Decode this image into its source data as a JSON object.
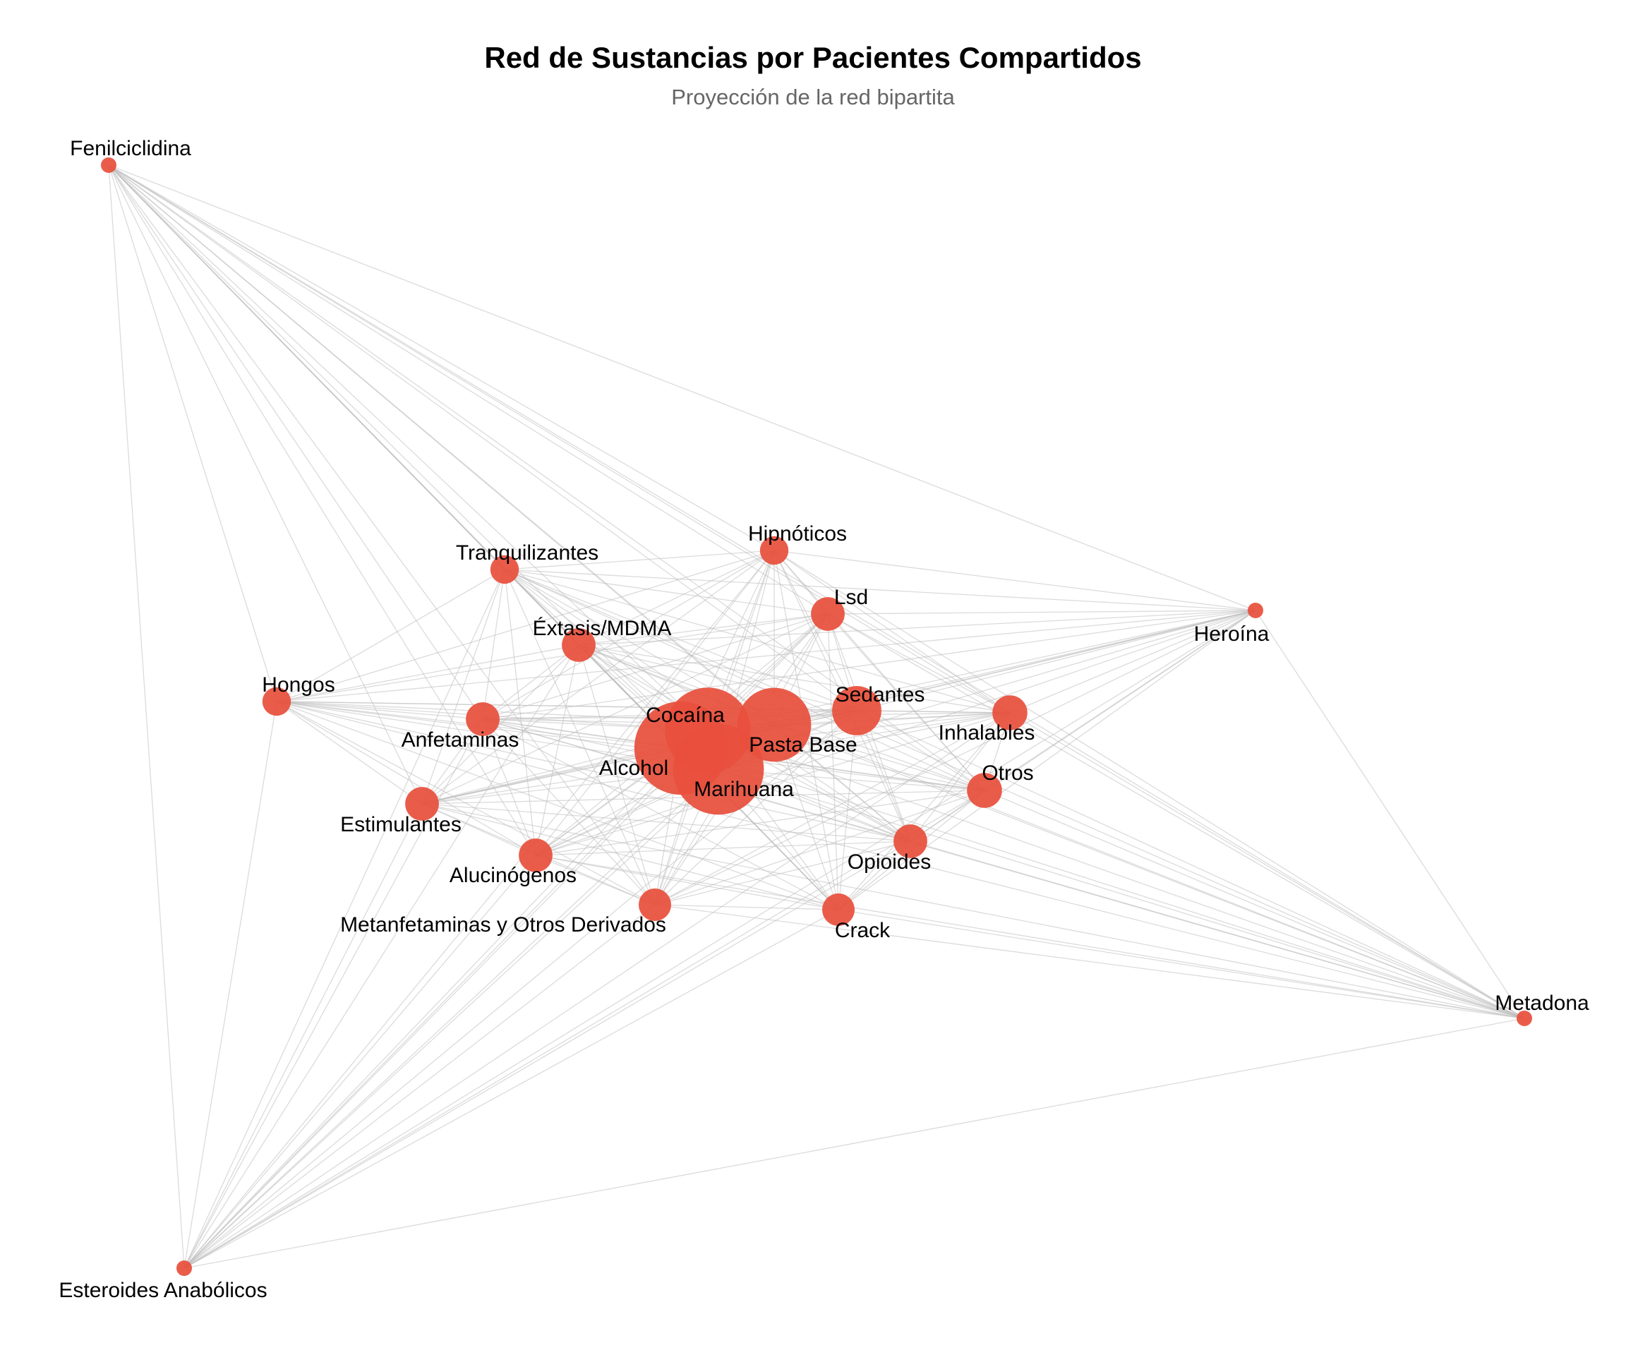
{
  "title": "Red de Sustancias por Pacientes Compartidos",
  "subtitle": "Proyección de la red bipartita",
  "colors": {
    "node": "#e8503c",
    "edge": "#bdbdbd",
    "text": "#000000",
    "subtitle": "#666666"
  },
  "nodes": [
    {
      "id": "fenilciclidina",
      "label": "Fenilciclidina",
      "size": 1
    },
    {
      "id": "heroina",
      "label": "Heroína",
      "size": 1
    },
    {
      "id": "metadona",
      "label": "Metadona",
      "size": 1
    },
    {
      "id": "esteroides",
      "label": "Esteroides Anabólicos",
      "size": 1
    },
    {
      "id": "tranquilizantes",
      "label": "Tranquilizantes",
      "size": 2
    },
    {
      "id": "hipnoticos",
      "label": "Hipnóticos",
      "size": 2
    },
    {
      "id": "lsd",
      "label": "Lsd",
      "size": 2.4
    },
    {
      "id": "extasis",
      "label": "Éxtasis/MDMA",
      "size": 2.4
    },
    {
      "id": "hongos",
      "label": "Hongos",
      "size": 2
    },
    {
      "id": "anfetaminas",
      "label": "Anfetaminas",
      "size": 2.4
    },
    {
      "id": "estimulantes",
      "label": "Estimulantes",
      "size": 2.4
    },
    {
      "id": "alucinogenos",
      "label": "Alucinógenos",
      "size": 2.4
    },
    {
      "id": "metanfetaminas",
      "label": "Metanfetaminas y Otros Derivados",
      "size": 2.3
    },
    {
      "id": "crack",
      "label": "Crack",
      "size": 2.3
    },
    {
      "id": "opioides",
      "label": "Opioides",
      "size": 2.4
    },
    {
      "id": "otros",
      "label": "Otros",
      "size": 2.5
    },
    {
      "id": "inhalables",
      "label": "Inhalables",
      "size": 2.5
    },
    {
      "id": "sedantes",
      "label": "Sedantes",
      "size": 3.6
    },
    {
      "id": "pastabase",
      "label": "Pasta Base",
      "size": 5.5
    },
    {
      "id": "cocaina",
      "label": "Cocaína",
      "size": 6.4
    },
    {
      "id": "alcohol",
      "label": "Alcohol",
      "size": 7
    },
    {
      "id": "marihuana",
      "label": "Marihuana",
      "size": 6.8
    }
  ]
}
